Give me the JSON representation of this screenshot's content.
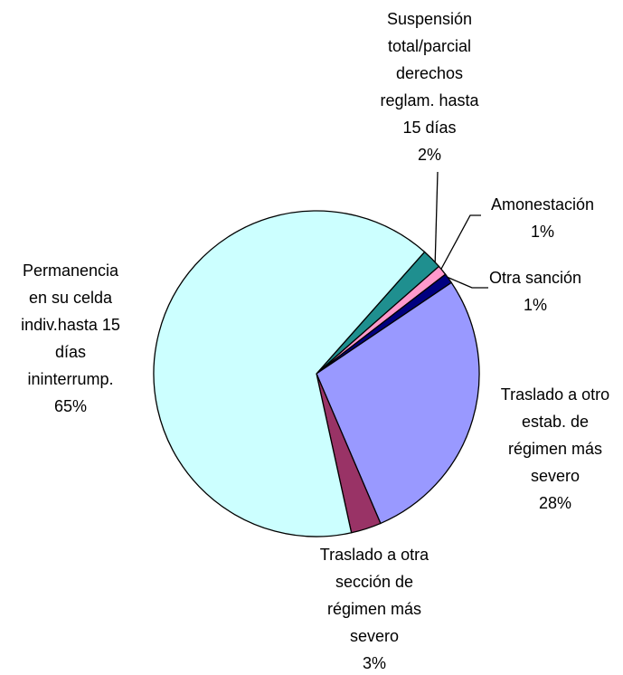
{
  "chart_data": {
    "type": "pie",
    "categories": [
      [
        "Suspensión",
        "total/parcial",
        "derechos",
        "reglam. hasta",
        "15 días"
      ],
      [
        "Amonestación"
      ],
      [
        "Otra sanción"
      ],
      [
        "Traslado a otro",
        "estab. de",
        "régimen más",
        "severo"
      ],
      [
        "Traslado a otra",
        "sección de",
        "régimen más",
        "severo"
      ],
      [
        "Permanencia",
        "en su celda",
        "indiv.hasta 15",
        "días",
        "ininterrump."
      ]
    ],
    "values": [
      2,
      1,
      1,
      28,
      3,
      65
    ],
    "value_labels": [
      "2%",
      "1%",
      "1%",
      "28%",
      "3%",
      "65%"
    ],
    "colors": [
      "#1f8f8f",
      "#ff99cc",
      "#000080",
      "#9999ff",
      "#993366",
      "#ccffff"
    ]
  }
}
